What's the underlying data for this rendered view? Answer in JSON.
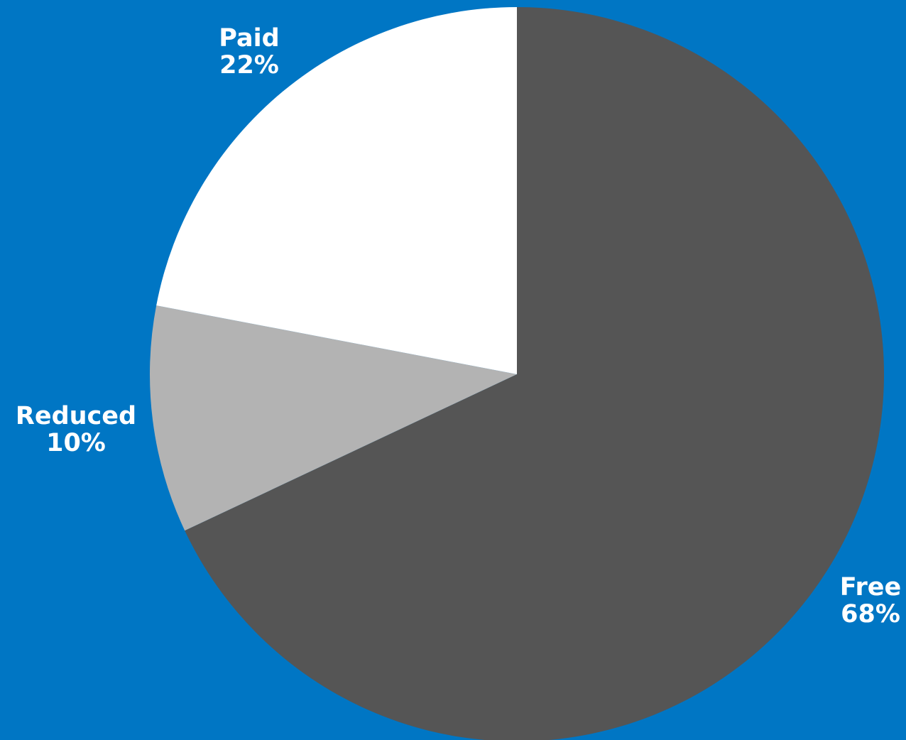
{
  "chart_data": {
    "type": "pie",
    "title": "",
    "start_angle_deg": 0,
    "direction": "clockwise",
    "legend": "none",
    "slices": [
      {
        "name": "Free",
        "value": 68,
        "label": "68%",
        "color": "#555555"
      },
      {
        "name": "Reduced",
        "value": 10,
        "label": "10%",
        "color": "#B3B3B3"
      },
      {
        "name": "Paid",
        "value": 22,
        "label": "22%",
        "color": "#FFFFFF"
      }
    ],
    "background_color": "#0076C4",
    "label_color": "#FFFFFF"
  }
}
